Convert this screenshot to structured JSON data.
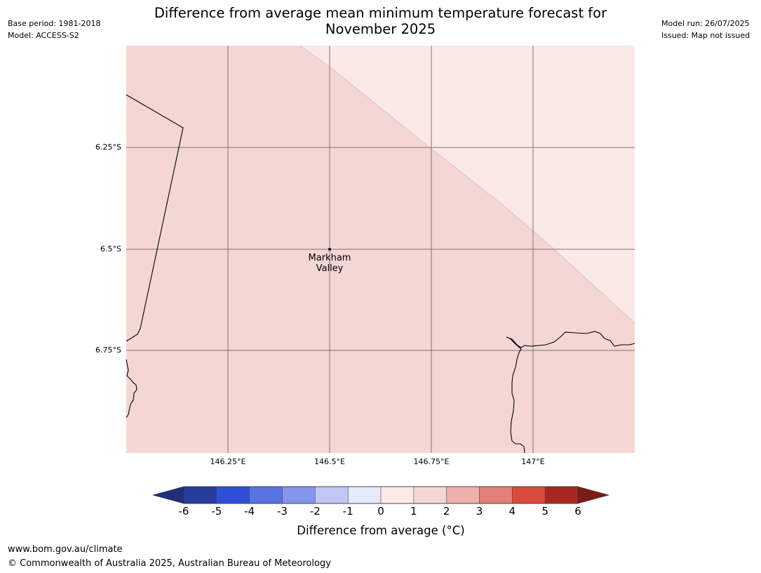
{
  "header": {
    "base_period": "Base period: 1981-2018",
    "model": "Model: ACCESS-S2",
    "model_run": "Model run: 26/07/2025",
    "issued": "Issued: Map not issued"
  },
  "title": "Difference from average mean minimum temperature forecast for November 2025",
  "map": {
    "latitude_labels": [
      "6.25°S",
      "6.5°S",
      "6.75°S"
    ],
    "longitude_labels": [
      "146.25°E",
      "146.5°E",
      "146.75°E",
      "147°E"
    ],
    "place": {
      "name_line1": "Markham",
      "name_line2": "Valley"
    },
    "fill_colors": {
      "band_1_2": "#f4d7d4",
      "band_0_1": "#fae9e7"
    }
  },
  "colorbar": {
    "ticks": [
      "-6",
      "-5",
      "-4",
      "-3",
      "-2",
      "-1",
      "0",
      "1",
      "2",
      "3",
      "4",
      "5",
      "6"
    ],
    "colors": [
      "#263b9e",
      "#2f4fd9",
      "#5a73e3",
      "#8396eb",
      "#c0c7f4",
      "#e7eafb",
      "#fbe9e7",
      "#f4d7d4",
      "#edb0ab",
      "#e37f78",
      "#d94a3f",
      "#a8281f"
    ],
    "under_color": "#1f2f7a",
    "over_color": "#7a1d18",
    "label": "Difference from average (°C)"
  },
  "footer": {
    "url": "www.bom.gov.au/climate",
    "copyright": "© Commonwealth of Australia 2025, Australian Bureau of Meteorology"
  }
}
